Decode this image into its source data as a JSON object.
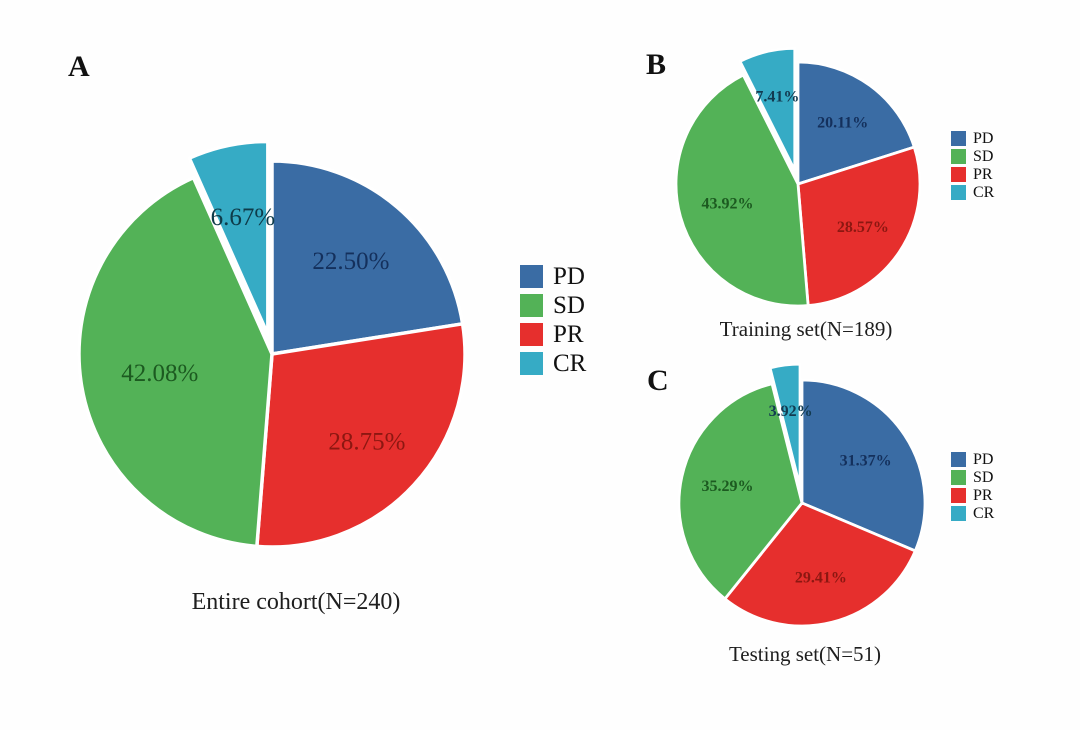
{
  "figure": {
    "panels": [
      {
        "letter": "A",
        "caption": "Entire cohort(N=240)"
      },
      {
        "letter": "B",
        "caption": "Training set(N=189)"
      },
      {
        "letter": "C",
        "caption": "Testing set(N=51)"
      }
    ],
    "legend_labels": [
      "PD",
      "SD",
      "PR",
      "CR"
    ]
  },
  "colors": {
    "PD": "#3a6ca4",
    "SD": "#53b257",
    "PR": "#e62f2d",
    "CR": "#36abc5"
  },
  "chart_data": [
    {
      "type": "pie",
      "panel": "A",
      "title": "Entire cohort(N=240)",
      "categories": [
        "PD",
        "SD",
        "PR",
        "CR"
      ],
      "values": [
        22.5,
        42.08,
        28.75,
        6.67
      ],
      "unit": "percent",
      "start_angle": "12-oclock",
      "direction": "clockwise",
      "legend_position": "right",
      "slices": [
        {
          "name": "PD",
          "value": 22.5,
          "label": "22.50%",
          "color": "#3a6ca4",
          "label_color": "#14305c",
          "exploded": false,
          "label_r": 0.63
        },
        {
          "name": "PR",
          "value": 28.75,
          "label": "28.75%",
          "color": "#e62f2d",
          "label_color": "#8c1711",
          "exploded": false,
          "label_r": 0.67
        },
        {
          "name": "SD",
          "value": 42.08,
          "label": "42.08%",
          "color": "#53b257",
          "label_color": "#1c5a20",
          "exploded": false,
          "label_r": 0.59
        },
        {
          "name": "CR",
          "value": 6.67,
          "label": "6.67%",
          "color": "#36abc5",
          "label_color": "#0e3b49",
          "exploded": true,
          "label_r": 0.62
        }
      ],
      "legend_items": [
        {
          "label": "PD",
          "color": "#3a6ca4"
        },
        {
          "label": "SD",
          "color": "#53b257"
        },
        {
          "label": "PR",
          "color": "#e62f2d"
        },
        {
          "label": "CR",
          "color": "#36abc5"
        }
      ]
    },
    {
      "type": "pie",
      "panel": "B",
      "title": "Training set(N=189)",
      "categories": [
        "PD",
        "SD",
        "PR",
        "CR"
      ],
      "values": [
        20.11,
        43.92,
        28.57,
        7.41
      ],
      "unit": "percent",
      "start_angle": "12-oclock",
      "direction": "clockwise",
      "legend_position": "right",
      "slices": [
        {
          "name": "PD",
          "value": 20.11,
          "label": "20.11%",
          "color": "#3a6ca4",
          "label_color": "#14305c",
          "exploded": false,
          "label_r": 0.62
        },
        {
          "name": "PR",
          "value": 28.57,
          "label": "28.57%",
          "color": "#e62f2d",
          "label_color": "#8c1711",
          "exploded": false,
          "label_r": 0.64
        },
        {
          "name": "SD",
          "value": 43.92,
          "label": "43.92%",
          "color": "#53b257",
          "label_color": "#1c5a20",
          "exploded": false,
          "label_r": 0.6
        },
        {
          "name": "CR",
          "value": 7.41,
          "label": "7.41%",
          "color": "#36abc5",
          "label_color": "#123a50",
          "exploded": true,
          "label_r": 0.62
        }
      ],
      "legend_items": [
        {
          "label": "PD",
          "color": "#3a6ca4"
        },
        {
          "label": "SD",
          "color": "#53b257"
        },
        {
          "label": "PR",
          "color": "#e62f2d"
        },
        {
          "label": "CR",
          "color": "#36abc5"
        }
      ]
    },
    {
      "type": "pie",
      "panel": "C",
      "title": "Testing set(N=51)",
      "categories": [
        "PD",
        "SD",
        "PR",
        "CR"
      ],
      "values": [
        31.37,
        35.29,
        29.41,
        3.92
      ],
      "unit": "percent",
      "start_angle": "12-oclock",
      "direction": "clockwise",
      "legend_position": "right",
      "slices": [
        {
          "name": "PD",
          "value": 31.37,
          "label": "31.37%",
          "color": "#3a6ca4",
          "label_color": "#14305c",
          "exploded": false,
          "label_r": 0.62
        },
        {
          "name": "PR",
          "value": 29.41,
          "label": "29.41%",
          "color": "#e62f2d",
          "label_color": "#8c1711",
          "exploded": false,
          "label_r": 0.63
        },
        {
          "name": "SD",
          "value": 35.29,
          "label": "35.29%",
          "color": "#53b257",
          "label_color": "#1c5a20",
          "exploded": false,
          "label_r": 0.62
        },
        {
          "name": "CR",
          "value": 3.92,
          "label": "3.92%",
          "color": "#36abc5",
          "label_color": "#123a50",
          "exploded": true,
          "label_r": 0.62
        }
      ],
      "legend_items": [
        {
          "label": "PD",
          "color": "#3a6ca4"
        },
        {
          "label": "SD",
          "color": "#53b257"
        },
        {
          "label": "PR",
          "color": "#e62f2d"
        },
        {
          "label": "CR",
          "color": "#36abc5"
        }
      ]
    }
  ]
}
